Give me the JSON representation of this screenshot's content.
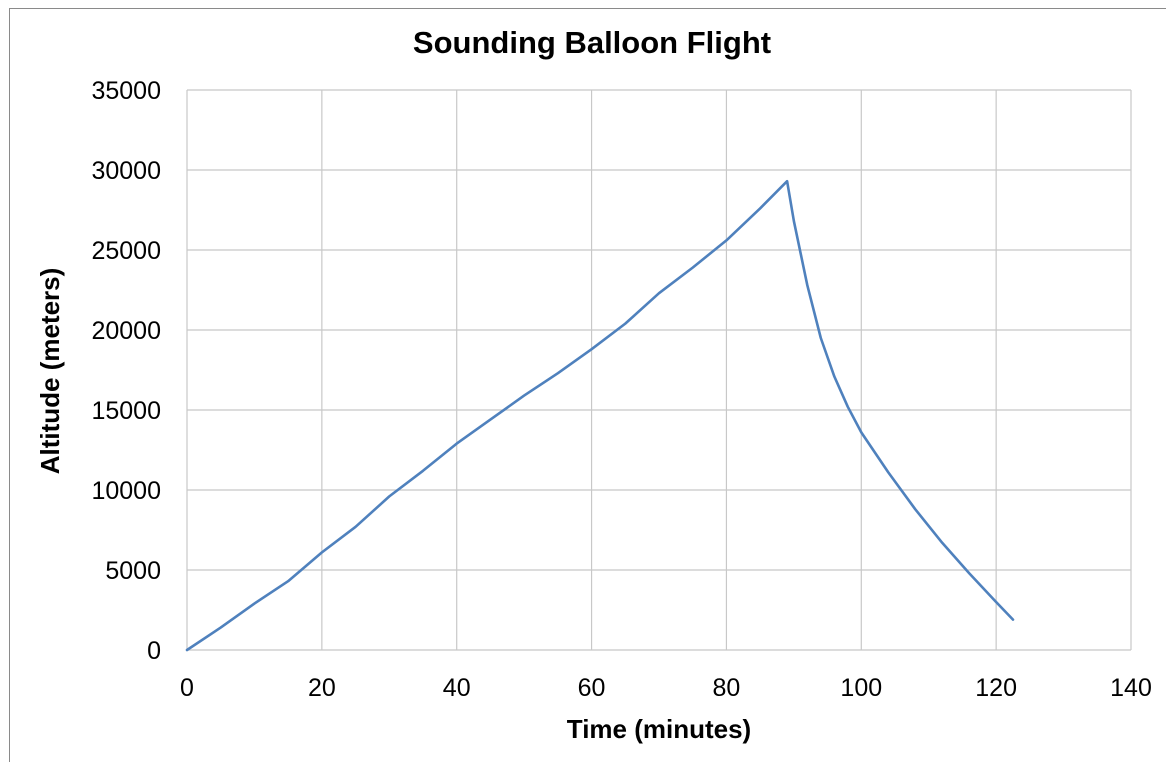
{
  "chart_data": {
    "type": "line",
    "title": "Sounding Balloon Flight",
    "xlabel": "Time (minutes)",
    "ylabel": "Altitude (meters)",
    "xlim": [
      0,
      140
    ],
    "ylim": [
      0,
      35000
    ],
    "xticks": [
      "0",
      "20",
      "40",
      "60",
      "80",
      "100",
      "120",
      "140"
    ],
    "yticks": [
      "0",
      "5000",
      "10000",
      "15000",
      "20000",
      "25000",
      "30000",
      "35000"
    ],
    "grid": true,
    "legend": "none",
    "series": [
      {
        "color": "#4f81bd",
        "points": [
          [
            0,
            0
          ],
          [
            5,
            1400
          ],
          [
            10,
            2900
          ],
          [
            15,
            4300
          ],
          [
            20,
            6100
          ],
          [
            25,
            7700
          ],
          [
            30,
            9600
          ],
          [
            35,
            11200
          ],
          [
            40,
            12900
          ],
          [
            45,
            14400
          ],
          [
            50,
            15900
          ],
          [
            55,
            17300
          ],
          [
            60,
            18800
          ],
          [
            65,
            20400
          ],
          [
            70,
            22300
          ],
          [
            75,
            23900
          ],
          [
            80,
            25600
          ],
          [
            85,
            27600
          ],
          [
            89,
            29300
          ],
          [
            90,
            26800
          ],
          [
            92,
            22800
          ],
          [
            94,
            19500
          ],
          [
            96,
            17100
          ],
          [
            98,
            15200
          ],
          [
            100,
            13600
          ],
          [
            104,
            11100
          ],
          [
            108,
            8800
          ],
          [
            112,
            6700
          ],
          [
            116,
            4800
          ],
          [
            120,
            3000
          ],
          [
            122.5,
            1900
          ]
        ]
      }
    ]
  }
}
